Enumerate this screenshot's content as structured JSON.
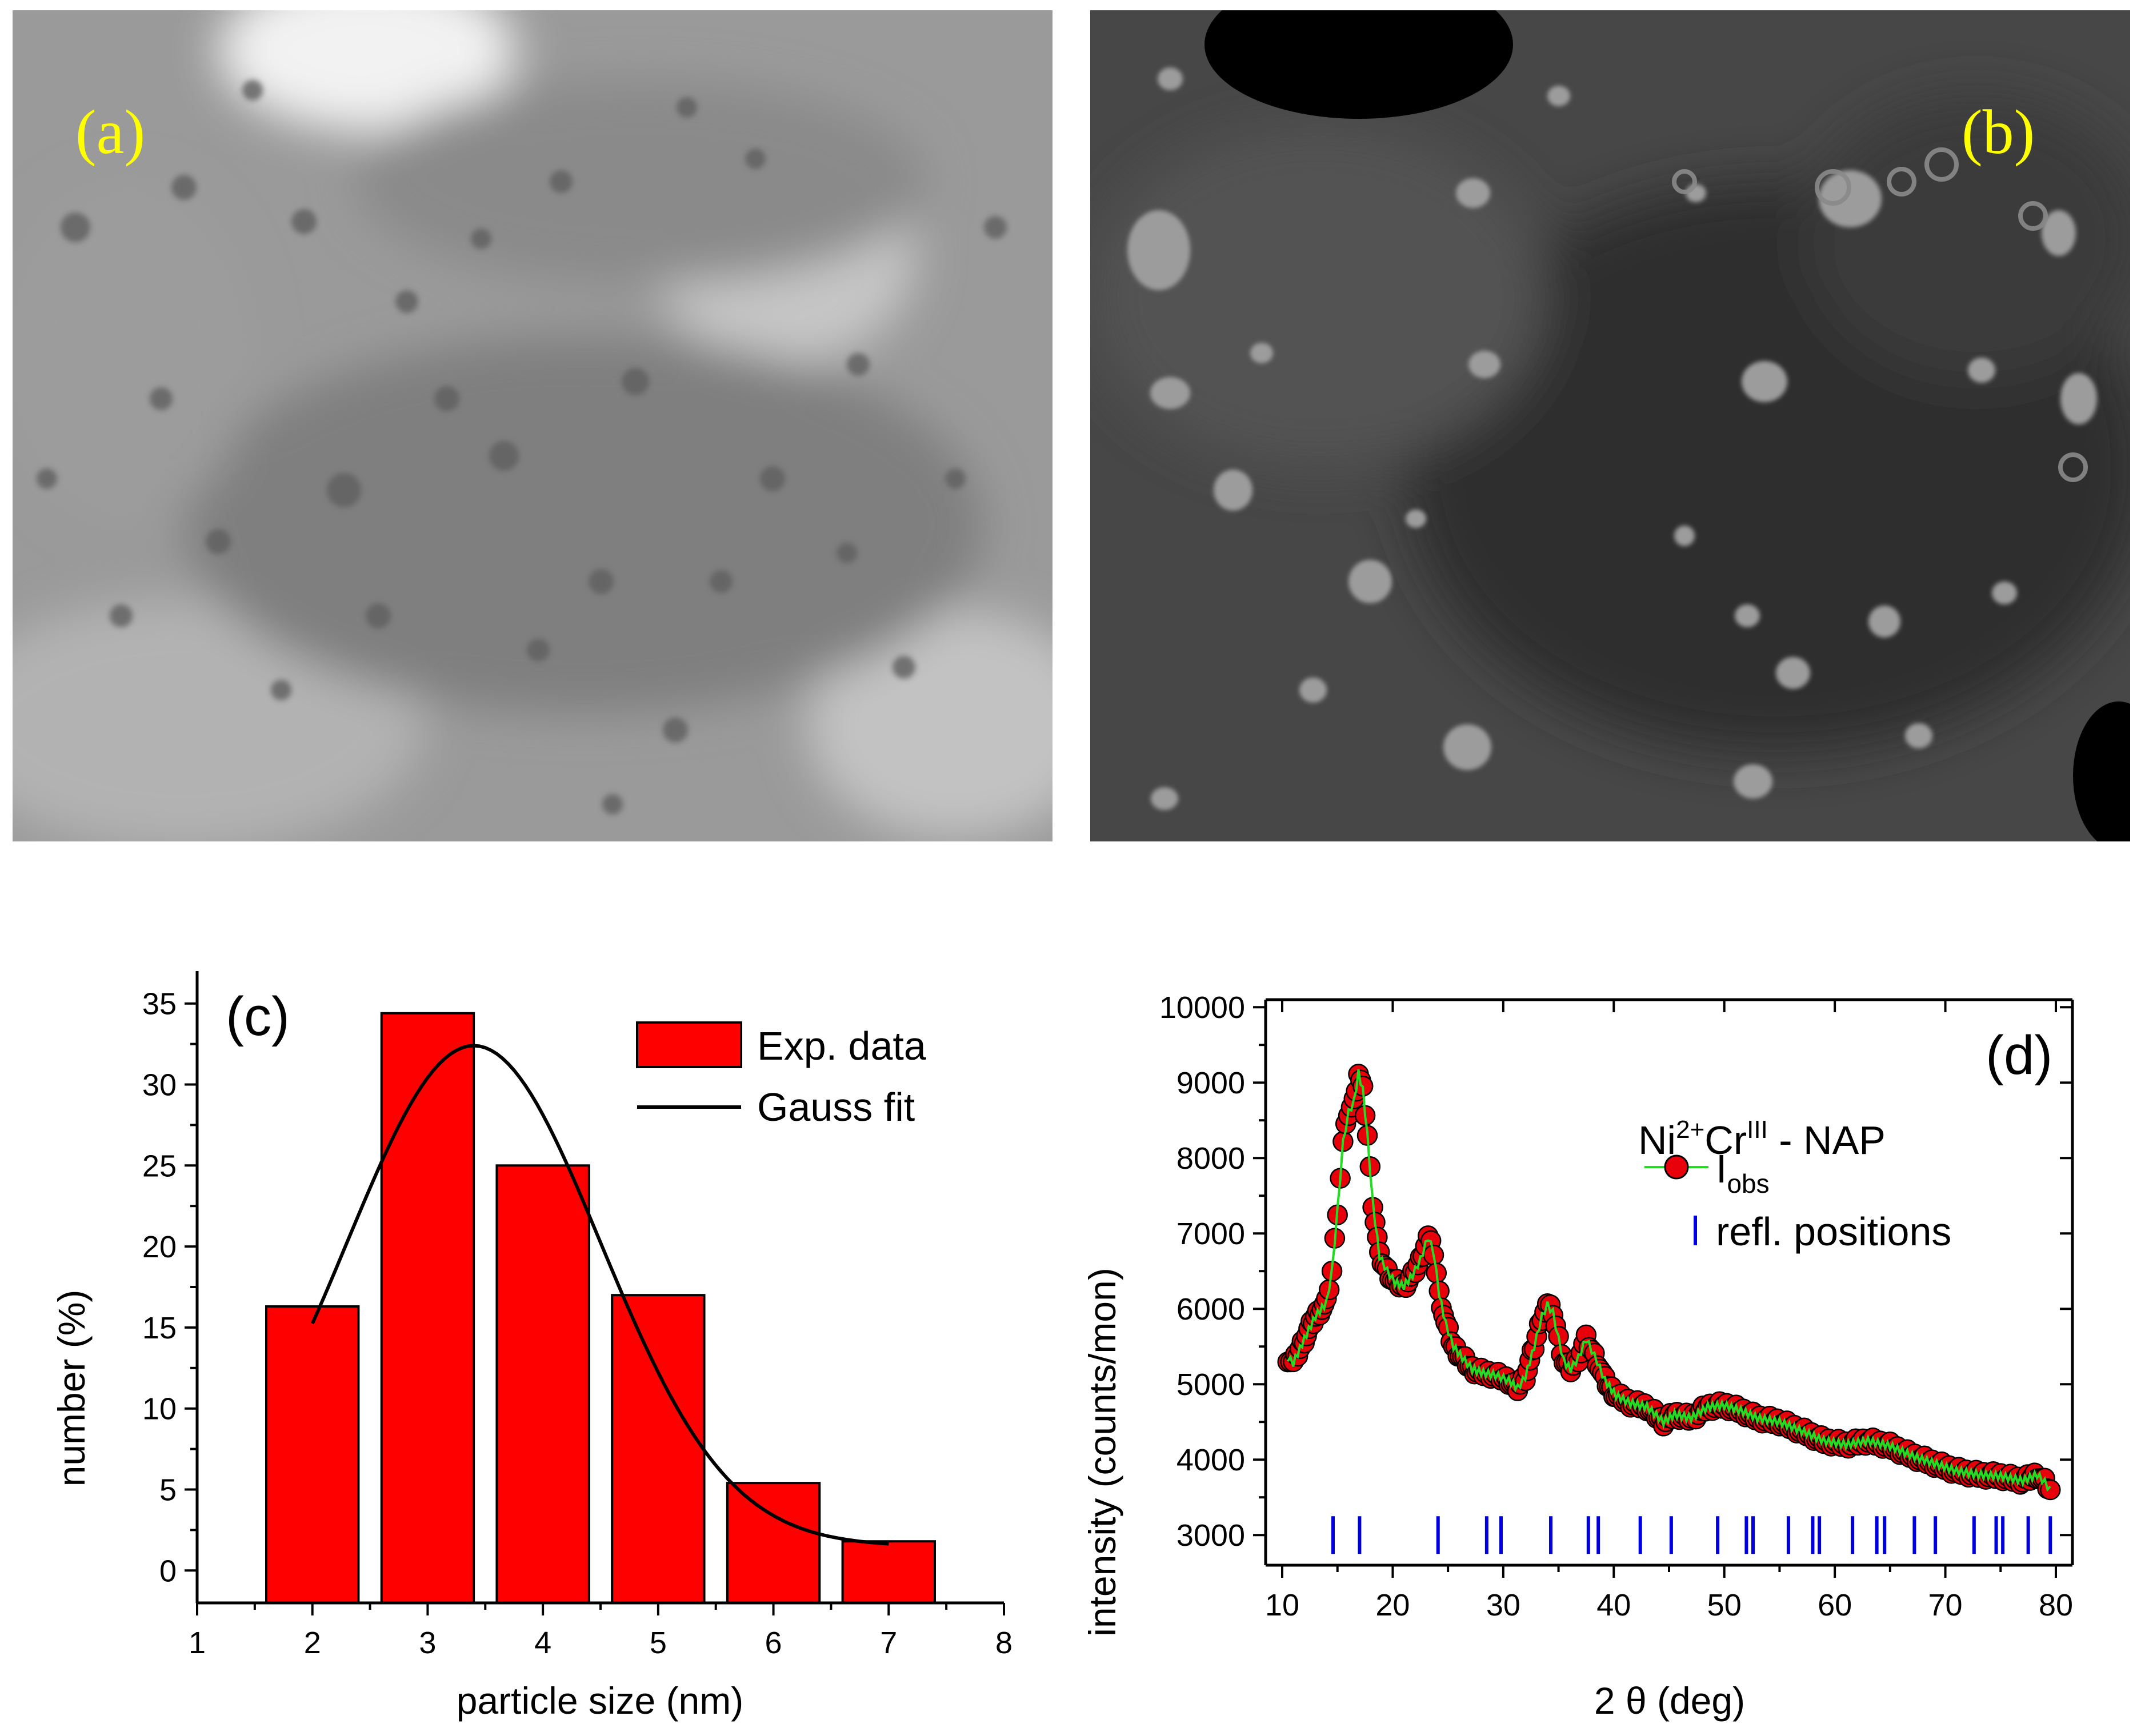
{
  "panels": {
    "a": {
      "label": "(a)"
    },
    "b": {
      "label": "(b)"
    }
  },
  "colors": {
    "panel_label": "#ffff00",
    "bar_fill": "#ff0000",
    "fit_line": "#000000",
    "obs_marker": "#e8000b",
    "obs_line": "#22dd22",
    "refl_ticks": "#0000dd"
  },
  "chart_data": [
    {
      "type": "bar",
      "panel_label": "(c)",
      "xlabel": "particle size (nm)",
      "ylabel": "number (%)",
      "xlim": [
        1,
        8
      ],
      "ylim": [
        -2,
        37
      ],
      "xticks": [
        1,
        2,
        3,
        4,
        5,
        6,
        7,
        8
      ],
      "yticks": [
        0,
        5,
        10,
        15,
        20,
        25,
        30,
        35
      ],
      "grid": false,
      "legend_position": "top-right",
      "legend": [
        "Exp. data",
        "Gauss fit"
      ],
      "x": [
        2,
        3,
        4,
        5,
        6,
        7
      ],
      "series": [
        {
          "name": "Exp. data",
          "values": [
            16.3,
            34.4,
            25.0,
            17.0,
            5.4,
            1.8
          ]
        }
      ],
      "fit": {
        "name": "Gauss fit",
        "x_range": [
          2,
          7
        ],
        "y0": 1.5,
        "amplitude": 30.9,
        "center": 3.4,
        "sigma": 1.1
      }
    },
    {
      "type": "line",
      "panel_label": "(d)",
      "xlabel": "2 θ (deg)",
      "ylabel": "intensity (counts/mon)",
      "xlim": [
        8.5,
        81.5
      ],
      "ylim": [
        2600,
        10100
      ],
      "xticks": [
        10,
        20,
        30,
        40,
        50,
        60,
        70,
        80
      ],
      "yticks": [
        3000,
        4000,
        5000,
        6000,
        7000,
        8000,
        9000,
        10000
      ],
      "grid": false,
      "legend_position": "top-right",
      "sample_label": {
        "base1": "Ni",
        "sup1": "2+",
        "base2": "Cr",
        "sup2": "III",
        "rest": " - NAP"
      },
      "legend": {
        "obs_base": "I",
        "obs_sub": "obs",
        "refl": "refl. positions"
      },
      "series": [
        {
          "name": "Iobs",
          "x": [
            10.5,
            11,
            12,
            13,
            14,
            14.5,
            15,
            15.5,
            16,
            16.5,
            16.9,
            17.3,
            17.7,
            18.2,
            18.8,
            19.5,
            20.2,
            21,
            21.8,
            22.5,
            23.2,
            23.7,
            24.2,
            24.8,
            25.5,
            26.3,
            27.2,
            28.2,
            29.3,
            30.5,
            31.3,
            32,
            32.8,
            33.5,
            34,
            34.5,
            35,
            35.5,
            36.1,
            36.8,
            37.5,
            38,
            38.5,
            39.2,
            40.2,
            41.5,
            43,
            44.5,
            45.5,
            47,
            48.5,
            50,
            51.5,
            53,
            55,
            57,
            59,
            61,
            63,
            65,
            67,
            69,
            71,
            73,
            75,
            77,
            78.3,
            79,
            79.5
          ],
          "y": [
            5350,
            5280,
            5600,
            5900,
            6080,
            6500,
            7300,
            8200,
            8600,
            8750,
            9130,
            8900,
            8300,
            7400,
            6700,
            6500,
            6350,
            6300,
            6450,
            6650,
            6950,
            6750,
            6200,
            5800,
            5500,
            5350,
            5200,
            5150,
            5120,
            5050,
            4950,
            5100,
            5500,
            5900,
            6050,
            5950,
            5600,
            5300,
            5200,
            5350,
            5600,
            5450,
            5300,
            5050,
            4850,
            4750,
            4700,
            4500,
            4600,
            4550,
            4700,
            4720,
            4650,
            4550,
            4500,
            4380,
            4250,
            4200,
            4250,
            4180,
            4050,
            3950,
            3850,
            3800,
            3780,
            3720,
            3800,
            3700,
            3600
          ]
        }
      ],
      "reflection_positions": [
        14.6,
        17.0,
        24.1,
        28.5,
        29.8,
        34.3,
        37.7,
        38.6,
        42.4,
        45.2,
        49.4,
        52.0,
        52.6,
        55.8,
        58.0,
        58.6,
        61.6,
        63.8,
        64.5,
        67.2,
        69.1,
        72.6,
        74.6,
        75.2,
        77.5,
        79.5
      ]
    }
  ]
}
